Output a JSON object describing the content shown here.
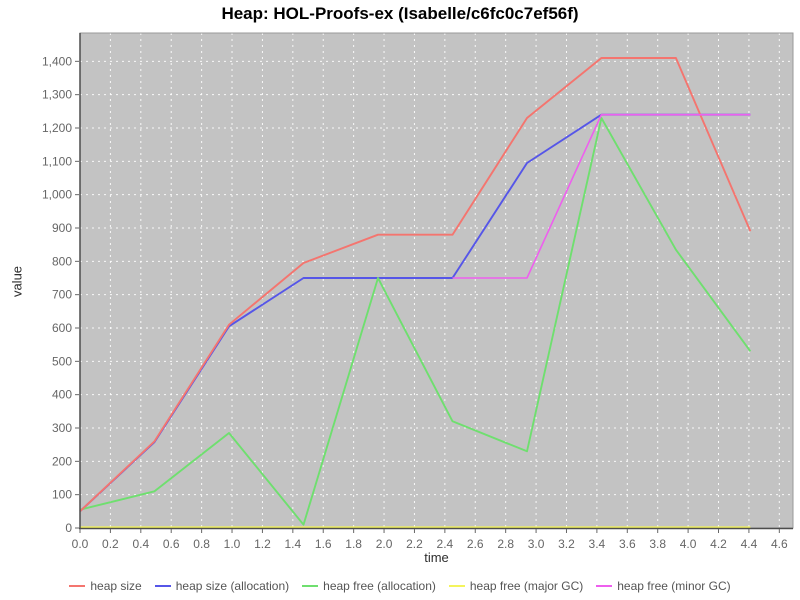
{
  "title": "Heap: HOL-Proofs-ex (Isabelle/c6fc0c7ef56f)",
  "chart_data": {
    "type": "line",
    "title": "Heap: HOL-Proofs-ex (Isabelle/c6fc0c7ef56f)",
    "xlabel": "time",
    "ylabel": "value",
    "xlim": [
      0,
      4.69
    ],
    "ylim": [
      0,
      1485
    ],
    "grid": true,
    "legend_position": "bottom",
    "plot_bg": "#c3c3c3",
    "grid_color": "#ffffff",
    "axis_color": "#4d4d4d",
    "tick_text_color": "#666666",
    "x_tick_labels": [
      "0.0",
      "0.2",
      "0.4",
      "0.6",
      "0.8",
      "1.0",
      "1.2",
      "1.4",
      "1.6",
      "1.8",
      "2.0",
      "2.2",
      "2.4",
      "2.6",
      "2.8",
      "3.0",
      "3.2",
      "3.4",
      "3.6",
      "3.8",
      "4.0",
      "4.2",
      "4.4",
      "4.6"
    ],
    "y_tick_labels": [
      "0",
      "100",
      "200",
      "300",
      "400",
      "500",
      "600",
      "700",
      "800",
      "900",
      "1,000",
      "1,100",
      "1,200",
      "1,300",
      "1,400"
    ],
    "series": [
      {
        "name": "heap size",
        "color": "#f4756f",
        "x": [
          0,
          0.49,
          0.98,
          1.47,
          1.96,
          2.45,
          2.94,
          3.43,
          3.92,
          4.41
        ],
        "y": [
          50,
          260,
          610,
          795,
          880,
          880,
          1230,
          1410,
          1410,
          890
        ]
      },
      {
        "name": "heap size (allocation)",
        "color": "#5656e8",
        "x": [
          0,
          0.49,
          0.98,
          1.47,
          1.96,
          2.45,
          2.94,
          3.43,
          3.92,
          4.41
        ],
        "y": [
          50,
          258,
          605,
          750,
          750,
          750,
          1095,
          1240,
          1240,
          1240
        ]
      },
      {
        "name": "heap free (allocation)",
        "color": "#6fdf6f",
        "x": [
          0,
          0.49,
          0.98,
          1.47,
          1.96,
          2.45,
          2.94,
          3.43,
          3.92,
          4.41
        ],
        "y": [
          55,
          110,
          285,
          10,
          750,
          320,
          230,
          1230,
          835,
          530
        ]
      },
      {
        "name": "heap free (major GC)",
        "color": "#f4f45c",
        "x": [
          0,
          0.49,
          0.98,
          1.47,
          1.96,
          2.45,
          2.94,
          3.43,
          3.92,
          4.41
        ],
        "y": [
          2,
          2,
          2,
          2,
          2,
          2,
          2,
          2,
          2,
          2
        ]
      },
      {
        "name": "heap free (minor GC)",
        "color": "#ee5fee",
        "x": [
          2.45,
          2.94,
          3.43,
          3.92,
          4.41
        ],
        "y": [
          750,
          750,
          1240,
          1240,
          1240
        ]
      }
    ]
  }
}
